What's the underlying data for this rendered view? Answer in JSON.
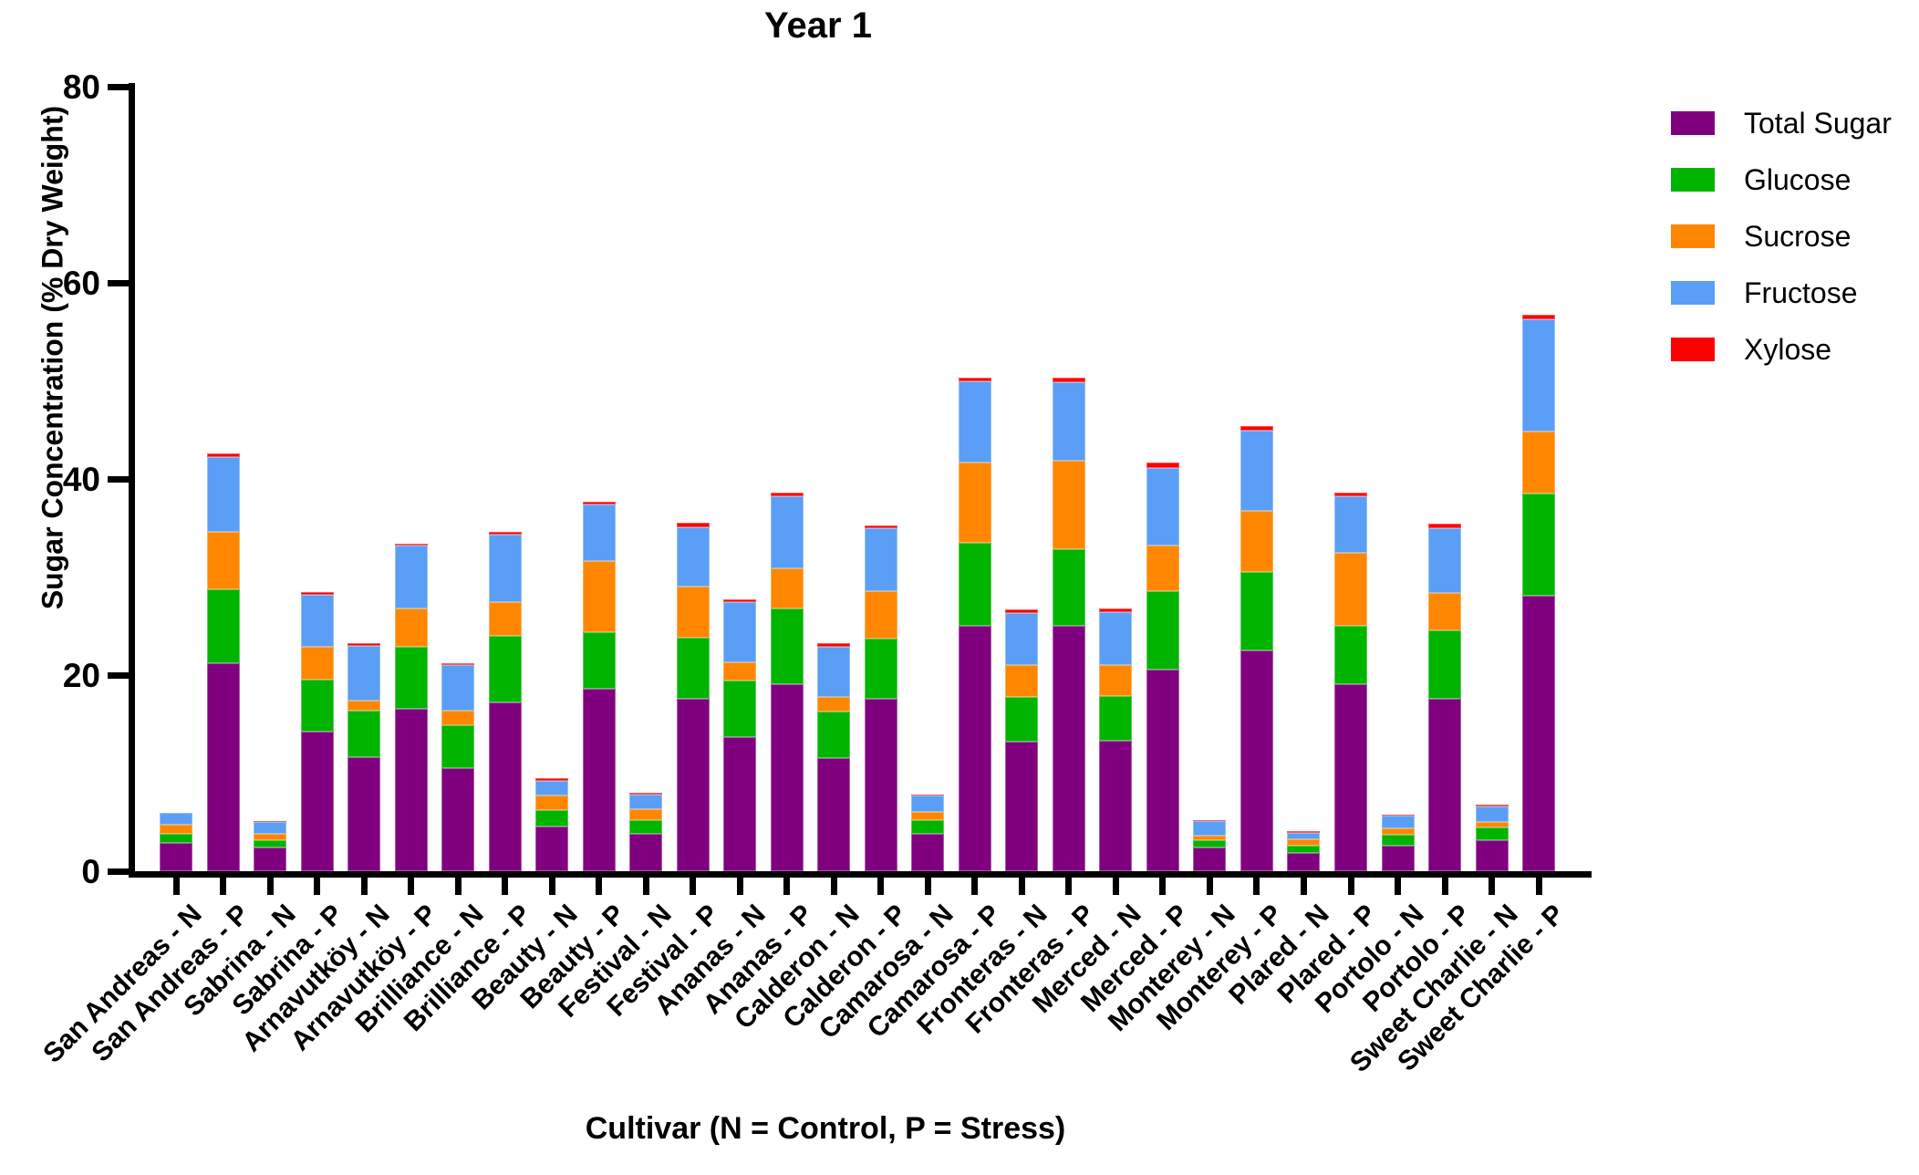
{
  "title": "Year 1",
  "y_axis": {
    "label": "Sugar Concentration (% Dry Weight)"
  },
  "x_axis": {
    "label": "Cultivar (N = Control, P = Stress)"
  },
  "legend": {
    "position": "right",
    "items": [
      {
        "label": "Total Sugar",
        "color": "#800080"
      },
      {
        "label": "Glucose",
        "color": "#00B400"
      },
      {
        "label": "Sucrose",
        "color": "#FF8600"
      },
      {
        "label": "Fructose",
        "color": "#5A9EF5"
      },
      {
        "label": "Xylose",
        "color": "#FF0000"
      }
    ]
  },
  "chart_data": {
    "type": "bar",
    "stacked": true,
    "grid": false,
    "legend_position": "right",
    "title": "Year 1",
    "xlabel": "Cultivar (N = Control, P = Stress)",
    "ylabel": "Sugar Concentration (% Dry Weight)",
    "ylim": [
      0,
      80
    ],
    "yticks": [
      0,
      20,
      40,
      60,
      80
    ],
    "categories": [
      "San Andreas - N",
      "San Andreas - P",
      "Sabrina - N",
      "Sabrina - P",
      "Arnavutköy - N",
      "Arnavutköy - P",
      "Brilliance - N",
      "Brilliance - P",
      "Beauty - N",
      "Beauty - P",
      "Festival - N",
      "Festival - P",
      "Ananas - N",
      "Ananas - P",
      "Calderon - N",
      "Calderon - P",
      "Camarosa - N",
      "Camarosa - P",
      "Fronteras - N",
      "Fronteras - P",
      "Merced - N",
      "Merced - P",
      "Monterey - N",
      "Monterey - P",
      "Plared - N",
      "Plared - P",
      "Portolo - N",
      "Portolo - P",
      "Sweet Charlie - N",
      "Sweet Charlie - P"
    ],
    "series": [
      {
        "name": "Total Sugar",
        "color": "#800080",
        "values": [
          2.9,
          21.2,
          2.4,
          14.2,
          11.6,
          16.6,
          10.5,
          17.2,
          4.6,
          18.6,
          3.8,
          17.6,
          13.7,
          19.1,
          11.5,
          17.6,
          3.8,
          25.0,
          13.2,
          25.0,
          13.3,
          20.6,
          2.4,
          22.5,
          1.9,
          19.1,
          2.6,
          17.6,
          3.2,
          28.1
        ]
      },
      {
        "name": "Glucose",
        "color": "#00B400",
        "values": [
          0.95,
          7.5,
          0.75,
          5.3,
          4.8,
          6.25,
          4.4,
          6.8,
          1.65,
          5.8,
          1.45,
          6.2,
          5.7,
          7.7,
          4.8,
          6.1,
          1.4,
          8.5,
          4.55,
          7.85,
          4.55,
          8.0,
          0.8,
          8.0,
          0.7,
          5.9,
          1.15,
          7.0,
          1.25,
          10.4
        ]
      },
      {
        "name": "Sucrose",
        "color": "#FF8600",
        "values": [
          0.85,
          5.9,
          0.7,
          3.35,
          1.0,
          3.95,
          1.5,
          3.4,
          1.5,
          7.2,
          1.1,
          5.25,
          1.9,
          4.1,
          1.5,
          4.9,
          0.85,
          8.15,
          3.3,
          9.0,
          3.2,
          4.65,
          0.4,
          6.2,
          0.65,
          7.5,
          0.6,
          3.8,
          0.6,
          6.3
        ]
      },
      {
        "name": "Fructose",
        "color": "#5A9EF5",
        "values": [
          1.3,
          7.6,
          1.15,
          5.35,
          5.6,
          6.4,
          4.6,
          6.9,
          1.5,
          5.8,
          1.45,
          6.05,
          6.1,
          7.3,
          5.1,
          6.4,
          1.65,
          8.3,
          5.3,
          8.0,
          5.35,
          7.9,
          1.5,
          8.2,
          0.7,
          5.7,
          1.3,
          6.6,
          1.55,
          11.5
        ]
      },
      {
        "name": "Xylose",
        "color": "#FF0000",
        "values": [
          0,
          0.4,
          0.15,
          0.3,
          0.25,
          0.2,
          0.25,
          0.3,
          0.2,
          0.3,
          0.2,
          0.4,
          0.35,
          0.4,
          0.35,
          0.3,
          0.1,
          0.4,
          0.35,
          0.5,
          0.35,
          0.55,
          0.1,
          0.5,
          0.15,
          0.45,
          0.15,
          0.45,
          0.15,
          0.4
        ]
      }
    ]
  }
}
